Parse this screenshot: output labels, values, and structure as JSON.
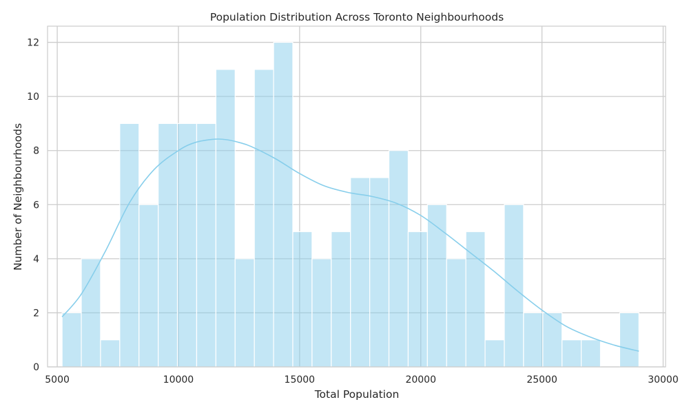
{
  "chart_data": {
    "type": "histogram",
    "title": "Population Distribution Across Toronto Neighbourhoods",
    "xlabel": "Total Population",
    "ylabel": "Number of Neighbourhoods",
    "xlim": [
      4600,
      30100
    ],
    "ylim": [
      0,
      12.6
    ],
    "xticks": [
      5000,
      10000,
      15000,
      20000,
      25000,
      30000
    ],
    "yticks": [
      0,
      2,
      4,
      6,
      8,
      10,
      12
    ],
    "grid": true,
    "bar_color": "#87ceeb",
    "bar_opacity": 0.5,
    "kde_color": "#87ceeb",
    "bins": {
      "start": 5200,
      "end": 29000,
      "values": [
        2,
        4,
        1,
        9,
        6,
        9,
        9,
        9,
        11,
        4,
        11,
        12,
        5,
        4,
        5,
        7,
        7,
        8,
        5,
        6,
        4,
        5,
        1,
        6,
        2,
        2,
        1,
        1,
        0,
        2
      ]
    },
    "kde": {
      "x": [
        5200,
        6000,
        7000,
        8000,
        9000,
        10000,
        10700,
        11500,
        12000,
        12500,
        13000,
        14000,
        15000,
        16000,
        17000,
        18000,
        19000,
        20000,
        21000,
        22000,
        23000,
        24000,
        25000,
        26000,
        27000,
        28000,
        29000
      ],
      "y": [
        1.85,
        2.7,
        4.3,
        6.1,
        7.3,
        8.0,
        8.3,
        8.42,
        8.4,
        8.3,
        8.15,
        7.7,
        7.15,
        6.7,
        6.45,
        6.3,
        6.05,
        5.6,
        4.95,
        4.25,
        3.55,
        2.8,
        2.1,
        1.5,
        1.1,
        0.8,
        0.58
      ]
    }
  }
}
